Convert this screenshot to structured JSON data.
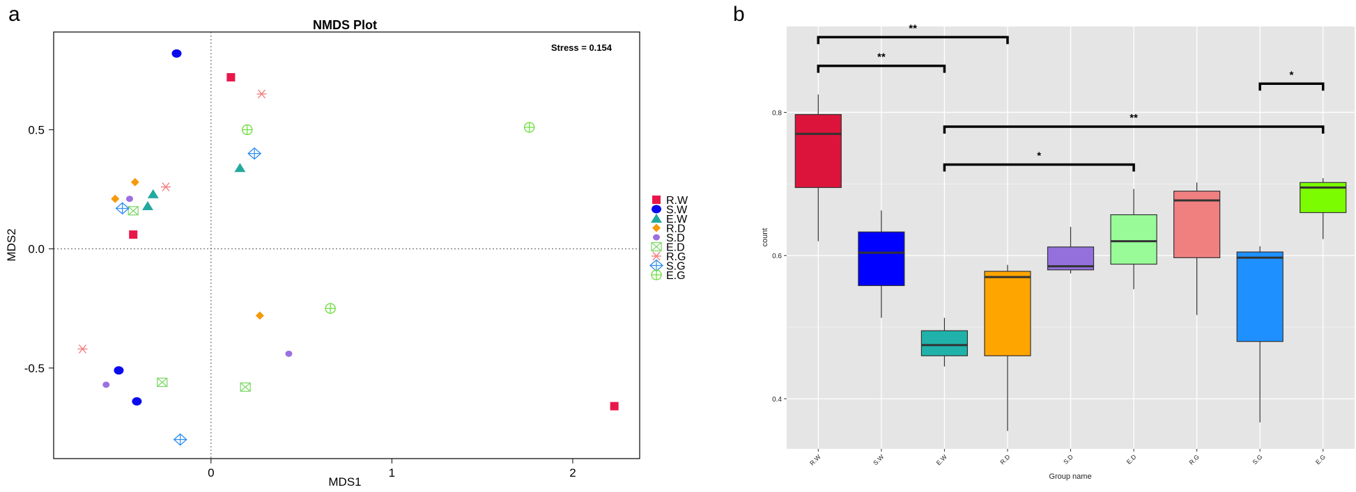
{
  "panel_a_label": "a",
  "panel_b_label": "b",
  "chart_data": [
    {
      "type": "scatter",
      "title": "NMDS Plot",
      "xlabel": "MDS1",
      "ylabel": "MDS2",
      "xlim": [
        -0.87,
        2.37
      ],
      "ylim": [
        -0.88,
        0.91
      ],
      "xticks": [
        0,
        1,
        2
      ],
      "xtick_labels": [
        "0",
        "1",
        "2"
      ],
      "yticks": [
        -0.5,
        0.0,
        0.5
      ],
      "ytick_labels": [
        "-0.5",
        "0.0",
        "0.5"
      ],
      "reference_lines": {
        "x": 0,
        "y": 0,
        "style": "dotted"
      },
      "annotation": "Stress = 0.154",
      "legend_position": "right",
      "series": [
        {
          "name": "R.W",
          "marker": "square",
          "color": "#e8174a",
          "points": [
            [
              0.11,
              0.72
            ],
            [
              -0.43,
              0.06
            ],
            [
              2.23,
              -0.66
            ]
          ]
        },
        {
          "name": "S.W",
          "marker": "circle",
          "color": "#0a0aef",
          "points": [
            [
              -0.19,
              0.82
            ],
            [
              -0.51,
              -0.51
            ],
            [
              -0.41,
              -0.64
            ]
          ]
        },
        {
          "name": "E.W",
          "marker": "triangle",
          "color": "#22a99f",
          "points": [
            [
              0.16,
              0.34
            ],
            [
              -0.32,
              0.23
            ],
            [
              -0.35,
              0.18
            ]
          ]
        },
        {
          "name": "R.D",
          "marker": "diamond",
          "color": "#f59a0b",
          "points": [
            [
              -0.42,
              0.28
            ],
            [
              -0.53,
              0.21
            ],
            [
              0.27,
              -0.28
            ]
          ]
        },
        {
          "name": "S.D",
          "marker": "dot",
          "color": "#9b70e0",
          "points": [
            [
              -0.45,
              0.21
            ],
            [
              -0.58,
              -0.57
            ],
            [
              0.43,
              -0.44
            ]
          ]
        },
        {
          "name": "E.D",
          "marker": "square-x",
          "color": "#7fd96a",
          "points": [
            [
              -0.43,
              0.16
            ],
            [
              -0.27,
              -0.56
            ],
            [
              0.19,
              -0.58
            ]
          ]
        },
        {
          "name": "R.G",
          "marker": "asterisk",
          "color": "#f08080",
          "points": [
            [
              0.28,
              0.65
            ],
            [
              -0.25,
              0.26
            ],
            [
              -0.71,
              -0.42
            ]
          ]
        },
        {
          "name": "S.G",
          "marker": "diamond-plus",
          "color": "#2b8cf0",
          "points": [
            [
              0.24,
              0.4
            ],
            [
              -0.49,
              0.17
            ],
            [
              -0.17,
              -0.8
            ]
          ]
        },
        {
          "name": "E.G",
          "marker": "circle-plus",
          "color": "#66dd33",
          "points": [
            [
              0.2,
              0.5
            ],
            [
              1.76,
              0.51
            ],
            [
              0.66,
              -0.25
            ]
          ]
        }
      ]
    },
    {
      "type": "box",
      "xlabel": "Group name",
      "ylabel": "count",
      "ylim": [
        0.33,
        0.92
      ],
      "yticks": [
        0.4,
        0.6,
        0.8
      ],
      "ytick_labels": [
        "0.4",
        "0.6",
        "0.8"
      ],
      "categories": [
        "R.W",
        "S.W",
        "E.W",
        "R.D",
        "S.D",
        "E.D",
        "R.G",
        "S.G",
        "E.G"
      ],
      "boxes": [
        {
          "group": "R.W",
          "min": 0.62,
          "q1": 0.695,
          "median": 0.77,
          "q3": 0.797,
          "max": 0.825,
          "color": "#dc143c"
        },
        {
          "group": "S.W",
          "min": 0.513,
          "q1": 0.558,
          "median": 0.604,
          "q3": 0.633,
          "max": 0.663,
          "color": "#0000ff"
        },
        {
          "group": "E.W",
          "min": 0.445,
          "q1": 0.46,
          "median": 0.475,
          "q3": 0.495,
          "max": 0.513,
          "color": "#20b2aa"
        },
        {
          "group": "R.D",
          "min": 0.355,
          "q1": 0.46,
          "median": 0.57,
          "q3": 0.578,
          "max": 0.587,
          "color": "#ffa500"
        },
        {
          "group": "S.D",
          "min": 0.575,
          "q1": 0.58,
          "median": 0.585,
          "q3": 0.612,
          "max": 0.64,
          "color": "#9370db"
        },
        {
          "group": "E.D",
          "min": 0.553,
          "q1": 0.588,
          "median": 0.62,
          "q3": 0.657,
          "max": 0.693,
          "color": "#98fb98"
        },
        {
          "group": "R.G",
          "min": 0.517,
          "q1": 0.597,
          "median": 0.677,
          "q3": 0.69,
          "max": 0.702,
          "color": "#f08080"
        },
        {
          "group": "S.G",
          "min": 0.367,
          "q1": 0.48,
          "median": 0.597,
          "q3": 0.605,
          "max": 0.613,
          "color": "#1e90ff"
        },
        {
          "group": "E.G",
          "min": 0.623,
          "q1": 0.66,
          "median": 0.695,
          "q3": 0.702,
          "max": 0.708,
          "color": "#7cfc00"
        }
      ],
      "significance": [
        {
          "from": "R.W",
          "to": "R.D",
          "level": 0.905,
          "label": "**"
        },
        {
          "from": "R.W",
          "to": "E.W",
          "level": 0.865,
          "label": "**"
        },
        {
          "from": "S.G",
          "to": "E.G",
          "level": 0.84,
          "label": "*"
        },
        {
          "from": "E.W",
          "to": "E.G",
          "level": 0.78,
          "label": "**"
        },
        {
          "from": "E.W",
          "to": "E.D",
          "level": 0.727,
          "label": "*"
        }
      ]
    }
  ]
}
